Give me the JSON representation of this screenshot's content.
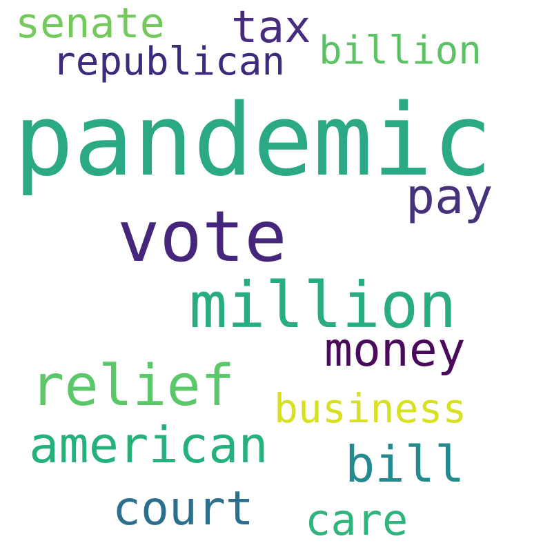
{
  "words": [
    {
      "text": "senate",
      "color": "#73c95b"
    },
    {
      "text": "tax",
      "color": "#472b7d"
    },
    {
      "text": "billion",
      "color": "#5cc265"
    },
    {
      "text": "republican",
      "color": "#3d2a7c"
    },
    {
      "text": "pandemic",
      "color": "#2ba985"
    },
    {
      "text": "pay",
      "color": "#45327b"
    },
    {
      "text": "vote",
      "color": "#46267a"
    },
    {
      "text": "million",
      "color": "#29ac81"
    },
    {
      "text": "money",
      "color": "#4a0a5b"
    },
    {
      "text": "relief",
      "color": "#5ac769"
    },
    {
      "text": "business",
      "color": "#d8e11f"
    },
    {
      "text": "american",
      "color": "#25b07c"
    },
    {
      "text": "bill",
      "color": "#258a8e"
    },
    {
      "text": "court",
      "color": "#2b6f8f"
    },
    {
      "text": "care",
      "color": "#2fb47c"
    }
  ]
}
